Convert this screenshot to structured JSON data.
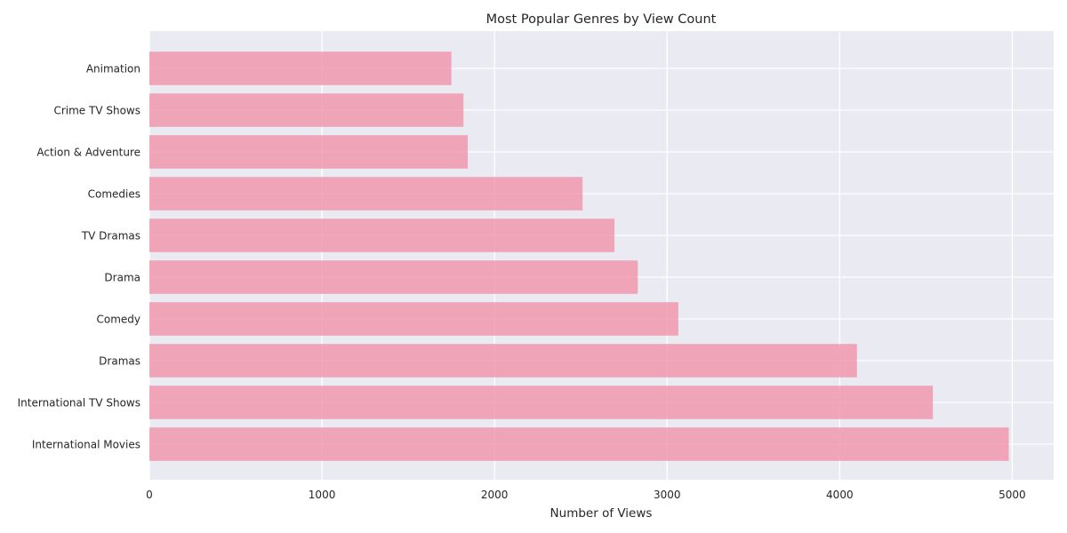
{
  "chart_data": {
    "type": "bar",
    "orientation": "horizontal",
    "title": "Most Popular Genres by View Count",
    "xlabel": "Number of Views",
    "ylabel": "",
    "xlim": [
      0,
      5240
    ],
    "xticks": [
      0,
      1000,
      2000,
      3000,
      4000,
      5000
    ],
    "grid": true,
    "categories": [
      "International Movies",
      "International TV Shows",
      "Dramas",
      "Comedy",
      "Drama",
      "TV Dramas",
      "Comedies",
      "Action & Adventure",
      "Crime TV Shows",
      "Animation"
    ],
    "values": [
      4980,
      4540,
      4100,
      3065,
      2830,
      2695,
      2510,
      1845,
      1820,
      1750
    ],
    "colors": {
      "bar": "#f08ca4",
      "plot_background": "#eaeaf2",
      "grid": "#ffffff",
      "text": "#262626"
    }
  }
}
